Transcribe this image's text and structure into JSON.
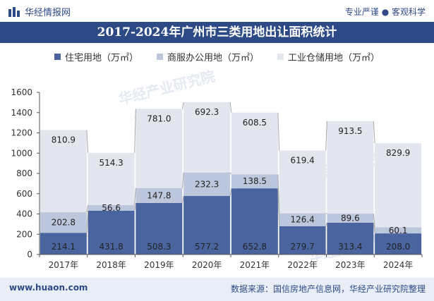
{
  "header": {
    "brand": "华经情报网",
    "slogan": "专业严谨 ● 客观科学"
  },
  "colors": {
    "title_bg": "#2d4a86",
    "residential": "#4a64a0",
    "commercial": "#bcc6dc",
    "industrial": "#e3e6ef",
    "connector": "#a9a9a9"
  },
  "chart_data": {
    "type": "bar",
    "stacked": true,
    "title": "2017-2024年广州市三类用地出让面积统计",
    "categories": [
      "2017年",
      "2018年",
      "2019年",
      "2020年",
      "2021年",
      "2022年",
      "2023年",
      "2024年"
    ],
    "series": [
      {
        "name": "住宅用地（万㎡）",
        "values": [
          214.1,
          431.8,
          508.3,
          577.2,
          652.8,
          279.7,
          313.4,
          208.0
        ],
        "labels": [
          "214.1",
          "431.8",
          "508.3",
          "577.2",
          "652.8",
          "279.7",
          "313.4",
          "208.0"
        ]
      },
      {
        "name": "商服办公用地（万㎡）",
        "values": [
          202.8,
          56.6,
          147.8,
          232.3,
          138.5,
          126.4,
          89.6,
          60.1
        ],
        "labels": [
          "202.8",
          "56.6",
          "147.8",
          "232.3",
          "138.5",
          "126.4",
          "89.6",
          "60.1"
        ]
      },
      {
        "name": "工业仓储用地（万㎡）",
        "values": [
          810.9,
          514.3,
          781.0,
          692.3,
          608.5,
          619.4,
          913.5,
          829.9
        ],
        "labels": [
          "810.9",
          "514.3",
          "781.0",
          "692.3",
          "608.5",
          "619.4",
          "913.5",
          "829.9"
        ]
      }
    ],
    "ylim": [
      0,
      1600
    ],
    "yticks": [
      0,
      200,
      400,
      600,
      800,
      1000,
      1200,
      1400,
      1600
    ],
    "ytick_labels": [
      "0",
      "200",
      "400",
      "600",
      "800",
      "1000",
      "1200",
      "1400",
      "1600"
    ],
    "xlabel": "",
    "ylabel": "",
    "legend_position": "top"
  },
  "watermarks": [
    "华经产业研究院",
    "华经产业研究院",
    "华经产业研究院"
  ],
  "footer": {
    "website": "www.huaon.com",
    "source": "数据来源：国信房地产信息网，华经产业研究院整理"
  }
}
